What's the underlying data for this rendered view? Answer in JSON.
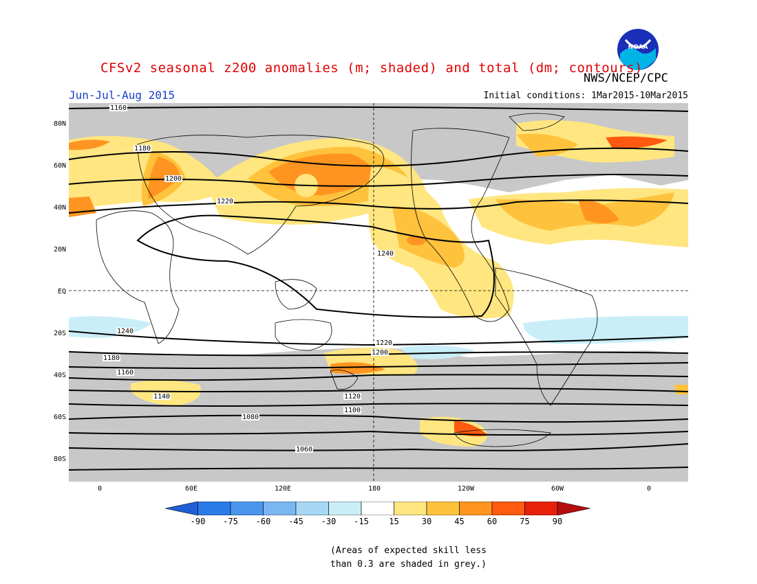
{
  "title": "CFSv2 seasonal z200 anomalies (m; shaded) and total (dm; contours)",
  "organization": "NWS/NCEP/CPC",
  "logo_text": "NOAA",
  "season": "Jun-Jul-Aug 2015",
  "initial_conditions": "Initial conditions: 1Mar2015-10Mar2015",
  "lat_labels": [
    "80N",
    "60N",
    "40N",
    "20N",
    "EQ",
    "20S",
    "40S",
    "60S",
    "80S"
  ],
  "lon_labels": [
    "0",
    "60E",
    "120E",
    "180",
    "120W",
    "60W",
    "0"
  ],
  "colorbar": {
    "labels": [
      "-90",
      "-75",
      "-60",
      "-45",
      "-30",
      "-15",
      "15",
      "30",
      "45",
      "60",
      "75",
      "90"
    ],
    "colors": [
      "#1f5fd6",
      "#2a7be8",
      "#4a96ee",
      "#79b6f2",
      "#a6d8f4",
      "#c9eef8",
      "#ffffff",
      "#ffe680",
      "#ffc23d",
      "#ff9520",
      "#ff5a0f",
      "#e8200a",
      "#b40e0e"
    ]
  },
  "contour_labels": [
    "1160",
    "1180",
    "1200",
    "1220",
    "1240",
    "1240",
    "1220",
    "1200",
    "1180",
    "1160",
    "1140",
    "1120",
    "1100",
    "1080",
    "1060"
  ],
  "skill_note": [
    "(Areas of expected skill less",
    "than 0.3 are shaded in grey.)"
  ]
}
